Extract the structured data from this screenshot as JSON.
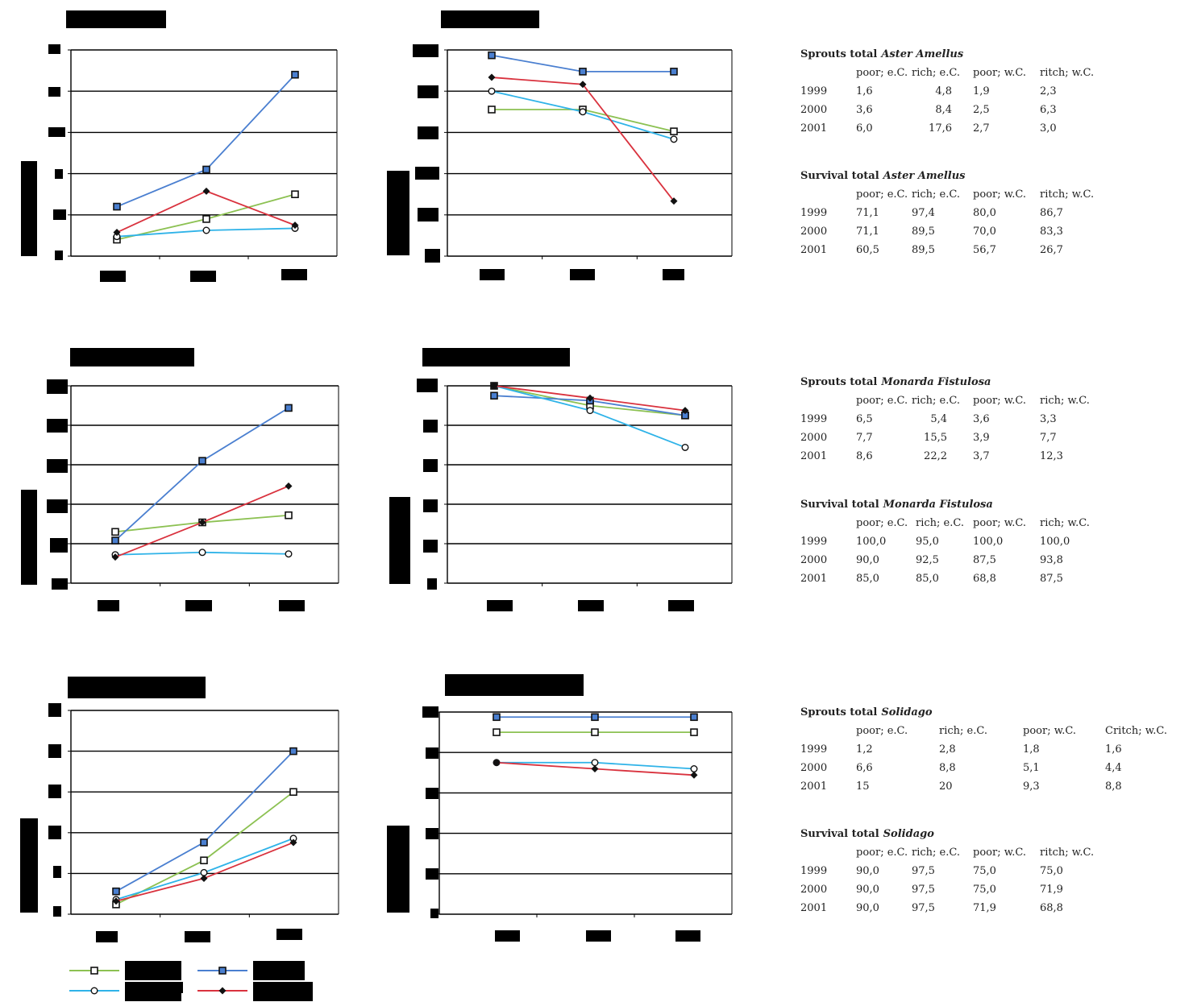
{
  "colors": {
    "poor_eC": "#8cc152",
    "rich_eC": "#4a7fd0",
    "poor_wC": "#2fb3e8",
    "rich_wC": "#d9323e",
    "redaction": "#000000"
  },
  "charts": [
    {
      "id": "aster-sprouts",
      "type": "line",
      "ylim": [
        0,
        20
      ],
      "grid": true,
      "categories": [
        "1999",
        "2000",
        "2001"
      ],
      "series": [
        {
          "key": "poor_eC",
          "marker": "open-square",
          "values": [
            1.6,
            3.6,
            6.0
          ]
        },
        {
          "key": "rich_eC",
          "marker": "square",
          "values": [
            4.8,
            8.4,
            17.6
          ]
        },
        {
          "key": "poor_wC",
          "marker": "circle",
          "values": [
            1.9,
            2.5,
            2.7
          ]
        },
        {
          "key": "rich_wC",
          "marker": "diamond",
          "values": [
            2.3,
            6.3,
            3.0
          ]
        }
      ]
    },
    {
      "id": "aster-survival",
      "type": "line",
      "ylim": [
        0,
        100
      ],
      "grid": true,
      "categories": [
        "1999",
        "2000",
        "2001"
      ],
      "series": [
        {
          "key": "poor_eC",
          "marker": "open-square",
          "values": [
            71.1,
            71.1,
            60.5
          ]
        },
        {
          "key": "rich_eC",
          "marker": "square",
          "values": [
            97.4,
            89.5,
            89.5
          ]
        },
        {
          "key": "poor_wC",
          "marker": "circle",
          "values": [
            80.0,
            70.0,
            56.7
          ]
        },
        {
          "key": "rich_wC",
          "marker": "diamond",
          "values": [
            86.7,
            83.3,
            26.7
          ]
        }
      ]
    },
    {
      "id": "monarda-sprouts",
      "type": "line",
      "ylim": [
        0,
        25
      ],
      "grid": true,
      "categories": [
        "1999",
        "2000",
        "2001"
      ],
      "series": [
        {
          "key": "poor_eC",
          "marker": "open-square",
          "values": [
            6.5,
            7.7,
            8.6
          ]
        },
        {
          "key": "rich_eC",
          "marker": "square",
          "values": [
            5.4,
            15.5,
            22.2
          ]
        },
        {
          "key": "poor_wC",
          "marker": "circle",
          "values": [
            3.6,
            3.9,
            3.7
          ]
        },
        {
          "key": "rich_wC",
          "marker": "diamond",
          "values": [
            3.3,
            7.7,
            12.3
          ]
        }
      ]
    },
    {
      "id": "monarda-survival",
      "type": "line",
      "ylim": [
        0,
        100
      ],
      "grid": true,
      "categories": [
        "1999",
        "2000",
        "2001"
      ],
      "series": [
        {
          "key": "poor_eC",
          "marker": "open-square",
          "values": [
            100.0,
            90.0,
            85.0
          ]
        },
        {
          "key": "rich_eC",
          "marker": "square",
          "values": [
            95.0,
            92.5,
            85.0
          ]
        },
        {
          "key": "poor_wC",
          "marker": "circle",
          "values": [
            100.0,
            87.5,
            68.8
          ]
        },
        {
          "key": "rich_wC",
          "marker": "diamond",
          "values": [
            100.0,
            93.8,
            87.5
          ]
        }
      ]
    },
    {
      "id": "solidago-sprouts",
      "type": "line",
      "ylim": [
        0,
        25
      ],
      "grid": true,
      "categories": [
        "1999",
        "2000",
        "2001"
      ],
      "series": [
        {
          "key": "poor_eC",
          "marker": "open-square",
          "values": [
            1.2,
            6.6,
            15
          ]
        },
        {
          "key": "rich_eC",
          "marker": "square",
          "values": [
            2.8,
            8.8,
            20
          ]
        },
        {
          "key": "poor_wC",
          "marker": "circle",
          "values": [
            1.8,
            5.1,
            9.3
          ]
        },
        {
          "key": "rich_wC",
          "marker": "diamond",
          "values": [
            1.6,
            4.4,
            8.8
          ]
        }
      ]
    },
    {
      "id": "solidago-survival",
      "type": "line",
      "ylim": [
        0,
        100
      ],
      "grid": true,
      "categories": [
        "1999",
        "2000",
        "2001"
      ],
      "series": [
        {
          "key": "poor_eC",
          "marker": "open-square",
          "values": [
            90.0,
            90.0,
            90.0
          ]
        },
        {
          "key": "rich_eC",
          "marker": "square",
          "values": [
            97.5,
            97.5,
            97.5
          ]
        },
        {
          "key": "poor_wC",
          "marker": "circle",
          "values": [
            75.0,
            75.0,
            71.9
          ]
        },
        {
          "key": "rich_wC",
          "marker": "diamond",
          "values": [
            75.0,
            71.9,
            68.8
          ]
        }
      ]
    }
  ],
  "chart_data": [
    {
      "type": "line",
      "categories": [
        "1999",
        "2000",
        "2001"
      ],
      "ylim": [
        0,
        20
      ],
      "grid": true,
      "series": [
        {
          "values": [
            1.6,
            3.6,
            6.0
          ]
        },
        {
          "values": [
            4.8,
            8.4,
            17.6
          ]
        },
        {
          "values": [
            1.9,
            2.5,
            2.7
          ]
        },
        {
          "values": [
            2.3,
            6.3,
            3.0
          ]
        }
      ]
    },
    {
      "type": "line",
      "categories": [
        "1999",
        "2000",
        "2001"
      ],
      "ylim": [
        0,
        100
      ],
      "grid": true,
      "series": [
        {
          "values": [
            71.1,
            71.1,
            60.5
          ]
        },
        {
          "values": [
            97.4,
            89.5,
            89.5
          ]
        },
        {
          "values": [
            80.0,
            70.0,
            56.7
          ]
        },
        {
          "values": [
            86.7,
            83.3,
            26.7
          ]
        }
      ]
    },
    {
      "type": "line",
      "categories": [
        "1999",
        "2000",
        "2001"
      ],
      "ylim": [
        0,
        25
      ],
      "grid": true,
      "series": [
        {
          "values": [
            6.5,
            7.7,
            8.6
          ]
        },
        {
          "values": [
            5.4,
            15.5,
            22.2
          ]
        },
        {
          "values": [
            3.6,
            3.9,
            3.7
          ]
        },
        {
          "values": [
            3.3,
            7.7,
            12.3
          ]
        }
      ]
    },
    {
      "type": "line",
      "categories": [
        "1999",
        "2000",
        "2001"
      ],
      "ylim": [
        0,
        100
      ],
      "grid": true,
      "series": [
        {
          "values": [
            100.0,
            90.0,
            85.0
          ]
        },
        {
          "values": [
            95.0,
            92.5,
            85.0
          ]
        },
        {
          "values": [
            100.0,
            87.5,
            68.8
          ]
        },
        {
          "values": [
            100.0,
            93.8,
            87.5
          ]
        }
      ]
    },
    {
      "type": "line",
      "categories": [
        "1999",
        "2000",
        "2001"
      ],
      "ylim": [
        0,
        25
      ],
      "grid": true,
      "series": [
        {
          "values": [
            1.2,
            6.6,
            15
          ]
        },
        {
          "values": [
            2.8,
            8.8,
            20
          ]
        },
        {
          "values": [
            1.8,
            5.1,
            9.3
          ]
        },
        {
          "values": [
            1.6,
            4.4,
            8.8
          ]
        }
      ]
    },
    {
      "type": "line",
      "categories": [
        "1999",
        "2000",
        "2001"
      ],
      "ylim": [
        0,
        100
      ],
      "grid": true,
      "series": [
        {
          "values": [
            90.0,
            90.0,
            90.0
          ]
        },
        {
          "values": [
            97.5,
            97.5,
            97.5
          ]
        },
        {
          "values": [
            75.0,
            75.0,
            71.9
          ]
        },
        {
          "values": [
            75.0,
            71.9,
            68.8
          ]
        }
      ]
    }
  ],
  "legend": {
    "placement": "bottom-left",
    "order": [
      "poor_eC",
      "rich_eC",
      "poor_wC",
      "rich_wC"
    ]
  },
  "tables": [
    {
      "id": "aster-sprouts-table",
      "title": "Sprouts total",
      "species": "Aster Amellus",
      "headers": [
        "poor; e.C.",
        "rich; e.C.",
        "poor; w.C.",
        "ritch; w.C."
      ],
      "rows": [
        [
          "1999",
          "1,6",
          "4,8",
          "1,9",
          "2,3"
        ],
        [
          "2000",
          "3,6",
          "8,4",
          "2,5",
          "6,3"
        ],
        [
          "2001",
          "6,0",
          "17,6",
          "2,7",
          "3,0"
        ]
      ]
    },
    {
      "id": "aster-survival-table",
      "title": "Survival total",
      "species": "Aster Amellus",
      "headers": [
        "poor; e.C.",
        "rich; e.C.",
        "poor; w.C.",
        "ritch; w.C."
      ],
      "rows": [
        [
          "1999",
          "71,1",
          "97,4",
          "80,0",
          "86,7"
        ],
        [
          "2000",
          "71,1",
          "89,5",
          "70,0",
          "83,3"
        ],
        [
          "2001",
          "60,5",
          "89,5",
          "56,7",
          "26,7"
        ]
      ]
    },
    {
      "id": "monarda-sprouts-table",
      "title": "Sprouts total",
      "species": "Monarda Fistulosa",
      "headers": [
        "poor; e.C.",
        "rich; e.C.",
        "poor; w.C.",
        "rich; w.C."
      ],
      "rows": [
        [
          "1999",
          "6,5",
          "5,4",
          "3,6",
          "3,3"
        ],
        [
          "2000",
          "7,7",
          "15,5",
          "3,9",
          "7,7"
        ],
        [
          "2001",
          "8,6",
          "22,2",
          "3,7",
          "12,3"
        ]
      ]
    },
    {
      "id": "monarda-survival-table",
      "title": "Survival total",
      "species": "Monarda Fistulosa",
      "headers": [
        "poor; e.C.",
        "rich; e.C.",
        "poor; w.C.",
        "rich; w.C."
      ],
      "rows": [
        [
          "1999",
          "100,0",
          "95,0",
          "100,0",
          "100,0"
        ],
        [
          "2000",
          "90,0",
          "92,5",
          "87,5",
          "93,8"
        ],
        [
          "2001",
          "85,0",
          "85,0",
          "68,8",
          "87,5"
        ]
      ]
    },
    {
      "id": "solidago-sprouts-table",
      "title": "Sprouts total",
      "species": "Solidago",
      "headers": [
        "poor; e.C.",
        "rich; e.C.",
        "poor; w.C.",
        "Critch; w.C."
      ],
      "rows": [
        [
          "1999",
          "1,2",
          "2,8",
          "1,8",
          "1,6"
        ],
        [
          "2000",
          "6,6",
          "8,8",
          "5,1",
          "4,4"
        ],
        [
          "2001",
          "15",
          "20",
          "9,3",
          "8,8"
        ]
      ]
    },
    {
      "id": "solidago-survival-table",
      "title": "Survival total",
      "species": "Solidago",
      "headers": [
        "poor; e.C.",
        "rich; e.C.",
        "poor; w.C.",
        "ritch; w.C."
      ],
      "rows": [
        [
          "1999",
          "90,0",
          "97,5",
          "75,0",
          "75,0"
        ],
        [
          "2000",
          "90,0",
          "97,5",
          "75,0",
          "71,9"
        ],
        [
          "2001",
          "90,0",
          "97,5",
          "71,9",
          "68,8"
        ]
      ]
    }
  ]
}
